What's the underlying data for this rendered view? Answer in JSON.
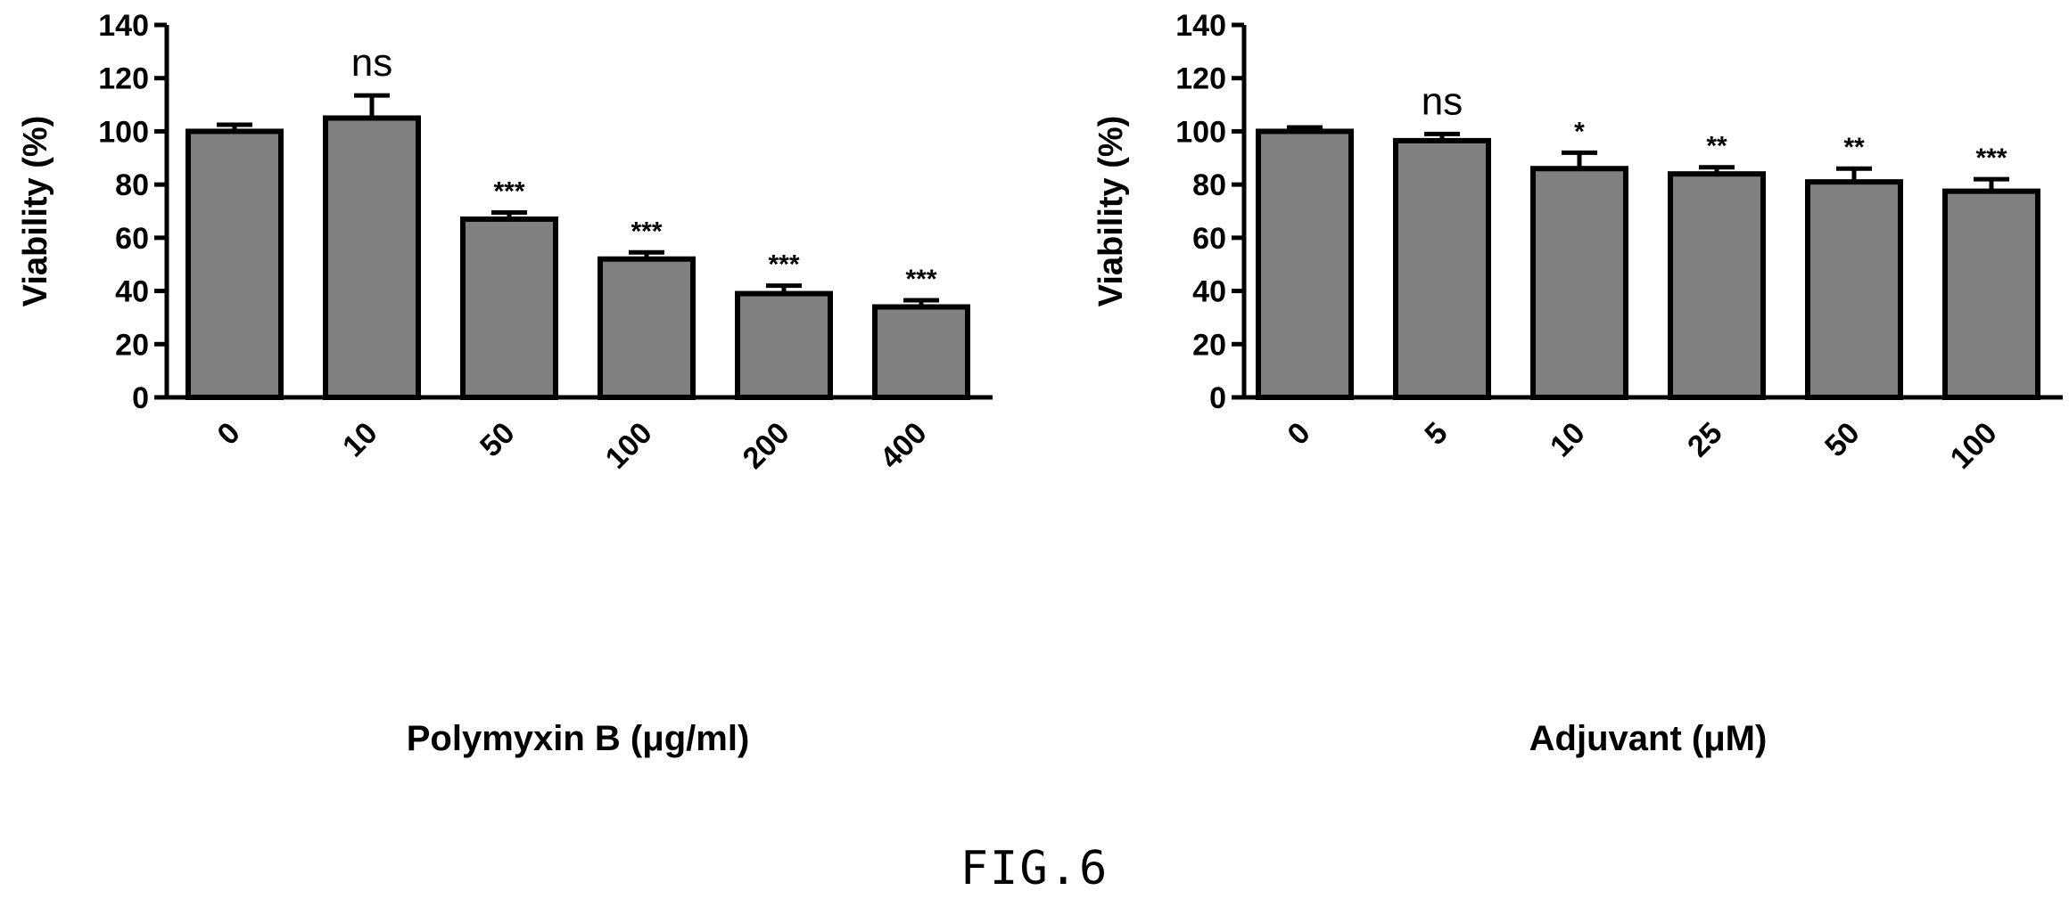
{
  "chart_data": [
    {
      "type": "bar",
      "xlabel": "Polymyxin B (μg/ml)",
      "ylabel": "Viability (%)",
      "ylim": [
        0,
        140
      ],
      "yticks": [
        0,
        20,
        40,
        60,
        80,
        100,
        120,
        140
      ],
      "categories": [
        "0",
        "10",
        "50",
        "100",
        "200",
        "400"
      ],
      "values": [
        100,
        105,
        67,
        52,
        39,
        34
      ],
      "errors": [
        2.5,
        8.5,
        2.5,
        2.5,
        3,
        2.5
      ],
      "significance": [
        "",
        "ns",
        "***",
        "***",
        "***",
        "***"
      ],
      "bar_color": "#808080",
      "grid": false
    },
    {
      "type": "bar",
      "xlabel": "Adjuvant (μM)",
      "ylabel": "Viability (%)",
      "ylim": [
        0,
        140
      ],
      "yticks": [
        0,
        20,
        40,
        60,
        80,
        100,
        120,
        140
      ],
      "categories": [
        "0",
        "5",
        "10",
        "25",
        "50",
        "100"
      ],
      "values": [
        100,
        96.5,
        86,
        84,
        81,
        77.5
      ],
      "errors": [
        1.5,
        2.5,
        6,
        2.5,
        5,
        4.5
      ],
      "significance": [
        "",
        "ns",
        "*",
        "**",
        "**",
        "***"
      ],
      "bar_color": "#808080",
      "grid": false
    }
  ],
  "caption": "FIG.6"
}
